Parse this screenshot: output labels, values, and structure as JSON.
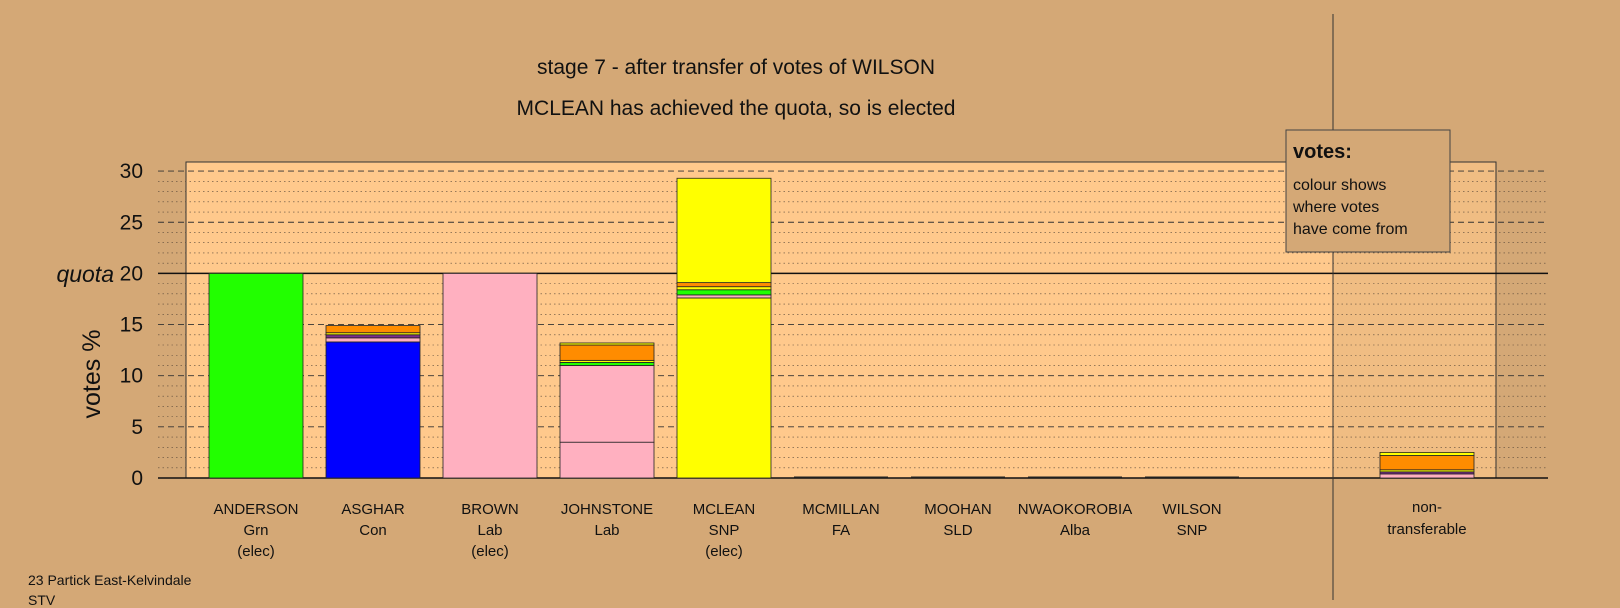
{
  "footer": {
    "line1": "23 Partick East-Kelvindale",
    "line2": "STV"
  },
  "chart_data": {
    "type": "bar",
    "stacked": true,
    "title": "stage 7 - after transfer of votes of WILSON",
    "subtitle": "MCLEAN has achieved the quota, so is elected",
    "ylabel": "votes %",
    "ylim": [
      0,
      30
    ],
    "yticks": [
      "0",
      "5",
      "10",
      "15",
      "20",
      "25",
      "30"
    ],
    "quota": 20,
    "quota_label": "quota",
    "grid": true,
    "legend_box": {
      "heading": "votes:",
      "lines": [
        "colour shows",
        "where votes",
        "have come from"
      ]
    },
    "colors": {
      "background": "#d4a876",
      "plot_area": "#ffc98c",
      "Grn": "#22ff00",
      "Con": "#0000ff",
      "Lab": "#ffb0c0",
      "SNP": "#ffff00",
      "Alba": "#ff8c00",
      "SLD": "#ffb0c0",
      "FA": "#7c2d8c"
    },
    "candidates": [
      {
        "name": "ANDERSON",
        "party": "Grn",
        "status": "(elec)",
        "segments": [
          {
            "source": "Grn",
            "value": 20.0
          }
        ]
      },
      {
        "name": "ASGHAR",
        "party": "Con",
        "status": "",
        "segments": [
          {
            "source": "Con",
            "value": 13.3
          },
          {
            "source": "Lab",
            "value": 0.4
          },
          {
            "source": "FA",
            "value": 0.3
          },
          {
            "source": "SNP",
            "value": 0.2
          },
          {
            "source": "Alba",
            "value": 0.7
          }
        ]
      },
      {
        "name": "BROWN",
        "party": "Lab",
        "status": "(elec)",
        "segments": [
          {
            "source": "Lab",
            "value": 20.0
          }
        ]
      },
      {
        "name": "JOHNSTONE",
        "party": "Lab",
        "status": "",
        "segments": [
          {
            "source": "Lab",
            "value": 3.5
          },
          {
            "source": "Lab",
            "value": 7.5
          },
          {
            "source": "Grn",
            "value": 0.3
          },
          {
            "source": "SNP",
            "value": 0.2
          },
          {
            "source": "Alba",
            "value": 1.5
          },
          {
            "source": "SNP",
            "value": 0.2
          }
        ]
      },
      {
        "name": "MCLEAN",
        "party": "SNP",
        "status": "(elec)",
        "segments": [
          {
            "source": "SNP",
            "value": 17.6
          },
          {
            "source": "Lab",
            "value": 0.3
          },
          {
            "source": "Grn",
            "value": 0.5
          },
          {
            "source": "SNP",
            "value": 0.3
          },
          {
            "source": "Alba",
            "value": 0.4
          },
          {
            "source": "SNP",
            "value": 10.2
          }
        ]
      },
      {
        "name": "MCMILLAN",
        "party": "FA",
        "status": "",
        "segments": []
      },
      {
        "name": "MOOHAN",
        "party": "SLD",
        "status": "",
        "segments": []
      },
      {
        "name": "NWAOKOROBIA",
        "party": "Alba",
        "status": "",
        "segments": []
      },
      {
        "name": "WILSON",
        "party": "SNP",
        "status": "",
        "segments": []
      }
    ],
    "non_transferable": {
      "label_line1": "non-",
      "label_line2": "transferable",
      "segments": [
        {
          "source": "Lab",
          "value": 0.4
        },
        {
          "source": "FA",
          "value": 0.2
        },
        {
          "source": "SNP",
          "value": 0.2
        },
        {
          "source": "Alba",
          "value": 1.4
        },
        {
          "source": "SNP",
          "value": 0.3
        }
      ]
    }
  }
}
